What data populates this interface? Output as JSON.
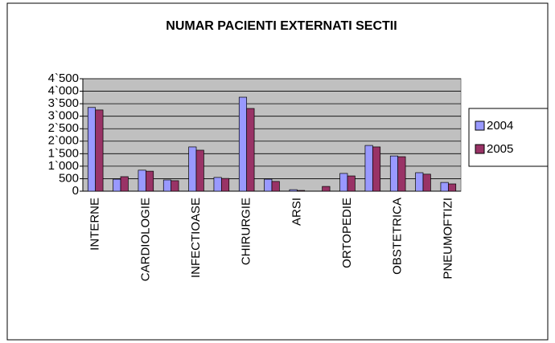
{
  "chart_data": {
    "type": "bar",
    "title": "NUMAR PACIENTI EXTERNATI SECTII",
    "categories": [
      "INTERNE",
      null,
      "CARDIOLOGIE",
      null,
      "INFECTIOASE",
      null,
      "CHIRURGIE",
      null,
      "ARSI",
      null,
      "ORTOPEDIE",
      null,
      "OBSTETRICA",
      null,
      "PNEUMOFTIZI"
    ],
    "series": [
      {
        "name": "2004",
        "color": "#9999ff",
        "values": [
          3350,
          480,
          840,
          450,
          1770,
          550,
          3760,
          480,
          60,
          0,
          710,
          1830,
          1410,
          740,
          350
        ]
      },
      {
        "name": "2005",
        "color": "#993366",
        "values": [
          3250,
          580,
          800,
          420,
          1640,
          510,
          3310,
          390,
          30,
          190,
          610,
          1770,
          1380,
          680,
          290
        ]
      }
    ],
    "ylim": [
      0,
      4500
    ],
    "yticks": [
      0,
      500,
      {
        "value": 1000,
        "label": "1`000"
      },
      {
        "value": 1500,
        "label": "1`500"
      },
      {
        "value": 2000,
        "label": "2`000"
      },
      {
        "value": 2500,
        "label": "2`500"
      },
      {
        "value": 3000,
        "label": "3`000"
      },
      {
        "value": 3500,
        "label": "3`500"
      },
      {
        "value": 4000,
        "label": "4`000"
      },
      {
        "value": 4500,
        "label": "4`500"
      }
    ],
    "grid": true,
    "legend": "right"
  }
}
